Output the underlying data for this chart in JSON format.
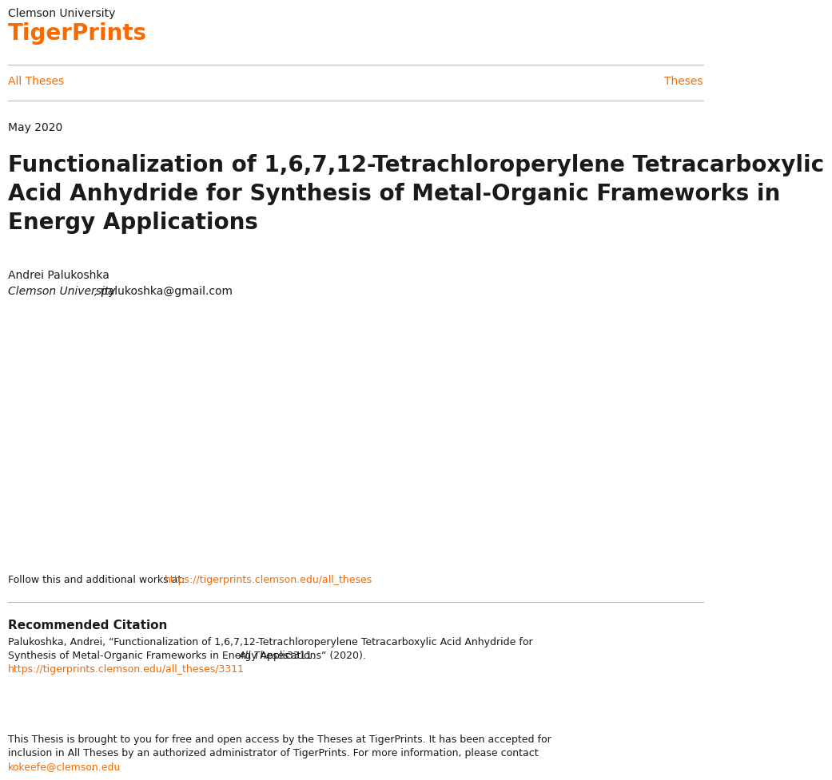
{
  "background_color": "#ffffff",
  "university": "Clemson University",
  "tigerprints": "TigerPrints",
  "tigerprints_color": "#F66A00",
  "all_theses": "All Theses",
  "theses": "Theses",
  "nav_color": "#F66A00",
  "date": "May 2020",
  "title_line1": "Functionalization of 1,6,7,12-Tetrachloroperylene Tetracarboxylic",
  "title_line2": "Acid Anhydride for Synthesis of Metal-Organic Frameworks in",
  "title_line3": "Energy Applications",
  "author": "Andrei Palukoshka",
  "affiliation_italic": "Clemson University",
  "affiliation_rest": ", palukoshka@gmail.com",
  "follow_text": "Follow this and additional works at: ",
  "follow_link": "https://tigerprints.clemson.edu/all_theses",
  "rec_citation_title": "Recommended Citation",
  "citation_text1": "Palukoshka, Andrei, “Functionalization of 1,6,7,12-Tetrachloroperylene Tetracarboxylic Acid Anhydride for",
  "citation_text2": "Synthesis of Metal-Organic Frameworks in Energy Applications” (2020). ",
  "citation_italic": "All Theses",
  "citation_text3": ". 3311.",
  "citation_link": "https://tigerprints.clemson.edu/all_theses/3311",
  "footer_text1": "This Thesis is brought to you for free and open access by the Theses at TigerPrints. It has been accepted for",
  "footer_text2": "inclusion in All Theses by an authorized administrator of TigerPrints. For more information, please contact",
  "footer_link": "kokeefe@clemson.edu",
  "footer_end": ".",
  "link_color": "#F66A00",
  "text_color": "#1a1a1a",
  "line_color": "#bbbbbb",
  "university_fontsize": 10,
  "tigerprints_fontsize": 20,
  "nav_fontsize": 10,
  "date_fontsize": 10,
  "title_fontsize": 20,
  "author_fontsize": 10,
  "body_fontsize": 9,
  "rec_citation_fontsize": 11
}
